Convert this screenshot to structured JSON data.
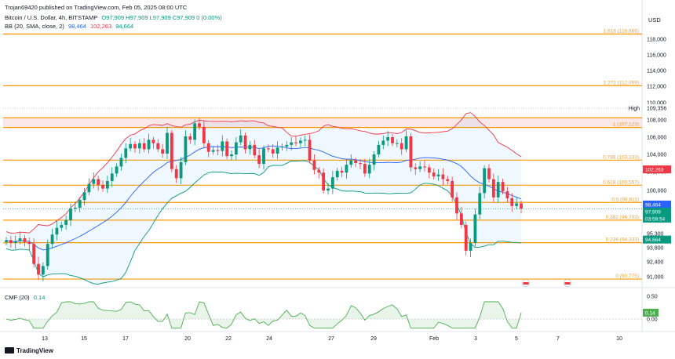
{
  "header": {
    "published": "Trojan69420 published on TradingView.com, Feb 05, 2025 08:00 UTC",
    "symbol": "Bitcoin / U.S. Dollar, 4h, BITSTAMP",
    "ohlc": "O97,909 H97,909 L97,909 C97,909 0 (0.00%)",
    "bb_label": "BB (20, SMA, close, 2)",
    "bb_basis": "98,464",
    "bb_upper": "102,263",
    "bb_lower": "94,664"
  },
  "currency": "USD",
  "cmf_header": {
    "label": "CMF (20)",
    "value": "0.14"
  },
  "brand": "TradingView",
  "colors": {
    "up": "#089981",
    "down": "#f23645",
    "fib": "#ff9800",
    "bb_basis": "#2962ff",
    "bb_upper": "#f23645",
    "bb_lower": "#089981",
    "cmf": "#4caf50"
  },
  "chart_data": [
    {
      "type": "candlestick",
      "title": "Bitcoin / U.S. Dollar, 4h, BITSTAMP",
      "y_ticks": [
        "118,000",
        "116,000",
        "114,000",
        "112,000",
        "110,000",
        "108,000",
        "106,000",
        "104,000",
        "102,000",
        "100,000",
        "98,000",
        "95,300",
        "93,800",
        "92,400",
        "91,000"
      ],
      "x_ticks": [
        "13",
        "15",
        "17",
        "20",
        "22",
        "24",
        "27",
        "29",
        "Feb",
        "3",
        "5",
        "7",
        "10"
      ],
      "ylim": [
        89800,
        119500
      ],
      "close_path": [
        94600,
        94300,
        94500,
        94800,
        94400,
        94200,
        92200,
        91200,
        92000,
        94200,
        95200,
        95900,
        96200,
        96700,
        97900,
        98000,
        98900,
        99800,
        100700,
        101200,
        100600,
        100200,
        101000,
        101800,
        102600,
        103600,
        104700,
        105200,
        104700,
        105300,
        104600,
        105700,
        105300,
        104600,
        104100,
        106500,
        102300,
        101300,
        103100,
        106100,
        105700,
        107600,
        107200,
        105300,
        104300,
        104500,
        104400,
        105500,
        103800,
        104000,
        105400,
        106200,
        104600,
        105100,
        103900,
        102900,
        104700,
        104600,
        104100,
        104800,
        104900,
        105100,
        105400,
        105300,
        105600,
        105700,
        103300,
        102200,
        101900,
        100000,
        100200,
        101400,
        102100,
        101900,
        102800,
        103300,
        103000,
        102900,
        101800,
        102800,
        104000,
        105100,
        105600,
        106000,
        105300,
        105300,
        104600,
        106100,
        102500,
        102300,
        102600,
        102500,
        101900,
        101500,
        101700,
        101200,
        101000,
        99200,
        97400,
        96200,
        93500,
        94300,
        97300,
        99700,
        102400,
        101200,
        99200,
        100900,
        99900,
        99100,
        98200,
        98500,
        97900
      ],
      "series": [
        {
          "name": "BB upper",
          "value_label": "102,263"
        },
        {
          "name": "BB basis",
          "value_label": "98,464"
        },
        {
          "name": "BB lower",
          "value_label": "94,664"
        }
      ],
      "fib_levels": [
        {
          "label": "1.618 (118,666)",
          "value": 118666
        },
        {
          "label": "1.272 (112,059)",
          "value": 112059
        },
        {
          "label": "1 (107,123)",
          "value": 107123
        },
        {
          "label": "0.786 (103,333)",
          "value": 103333
        },
        {
          "label": "0.618 (100,557)",
          "value": 100557
        },
        {
          "label": "0.5 (98,611)",
          "value": 98611
        },
        {
          "label": "0.382 (96,703)",
          "value": 96703
        },
        {
          "label": "0.236 (94,333)",
          "value": 94333
        },
        {
          "label": "0 (90,775)",
          "value": 90775
        }
      ],
      "high_marker": {
        "label": "High",
        "value": "109,356"
      },
      "price_tags": [
        {
          "text": "102,263",
          "color": "#f23645"
        },
        {
          "text": "98,464",
          "color": "#2962ff"
        },
        {
          "text": "97,909",
          "color": "#089981"
        },
        {
          "text": "03:59:54",
          "color": "#089981"
        },
        {
          "text": "94,664",
          "color": "#089981"
        }
      ]
    },
    {
      "type": "line",
      "title": "CMF (20)",
      "y_ticks": [
        "0.50",
        "0.00"
      ],
      "last_value": "0.14"
    }
  ]
}
